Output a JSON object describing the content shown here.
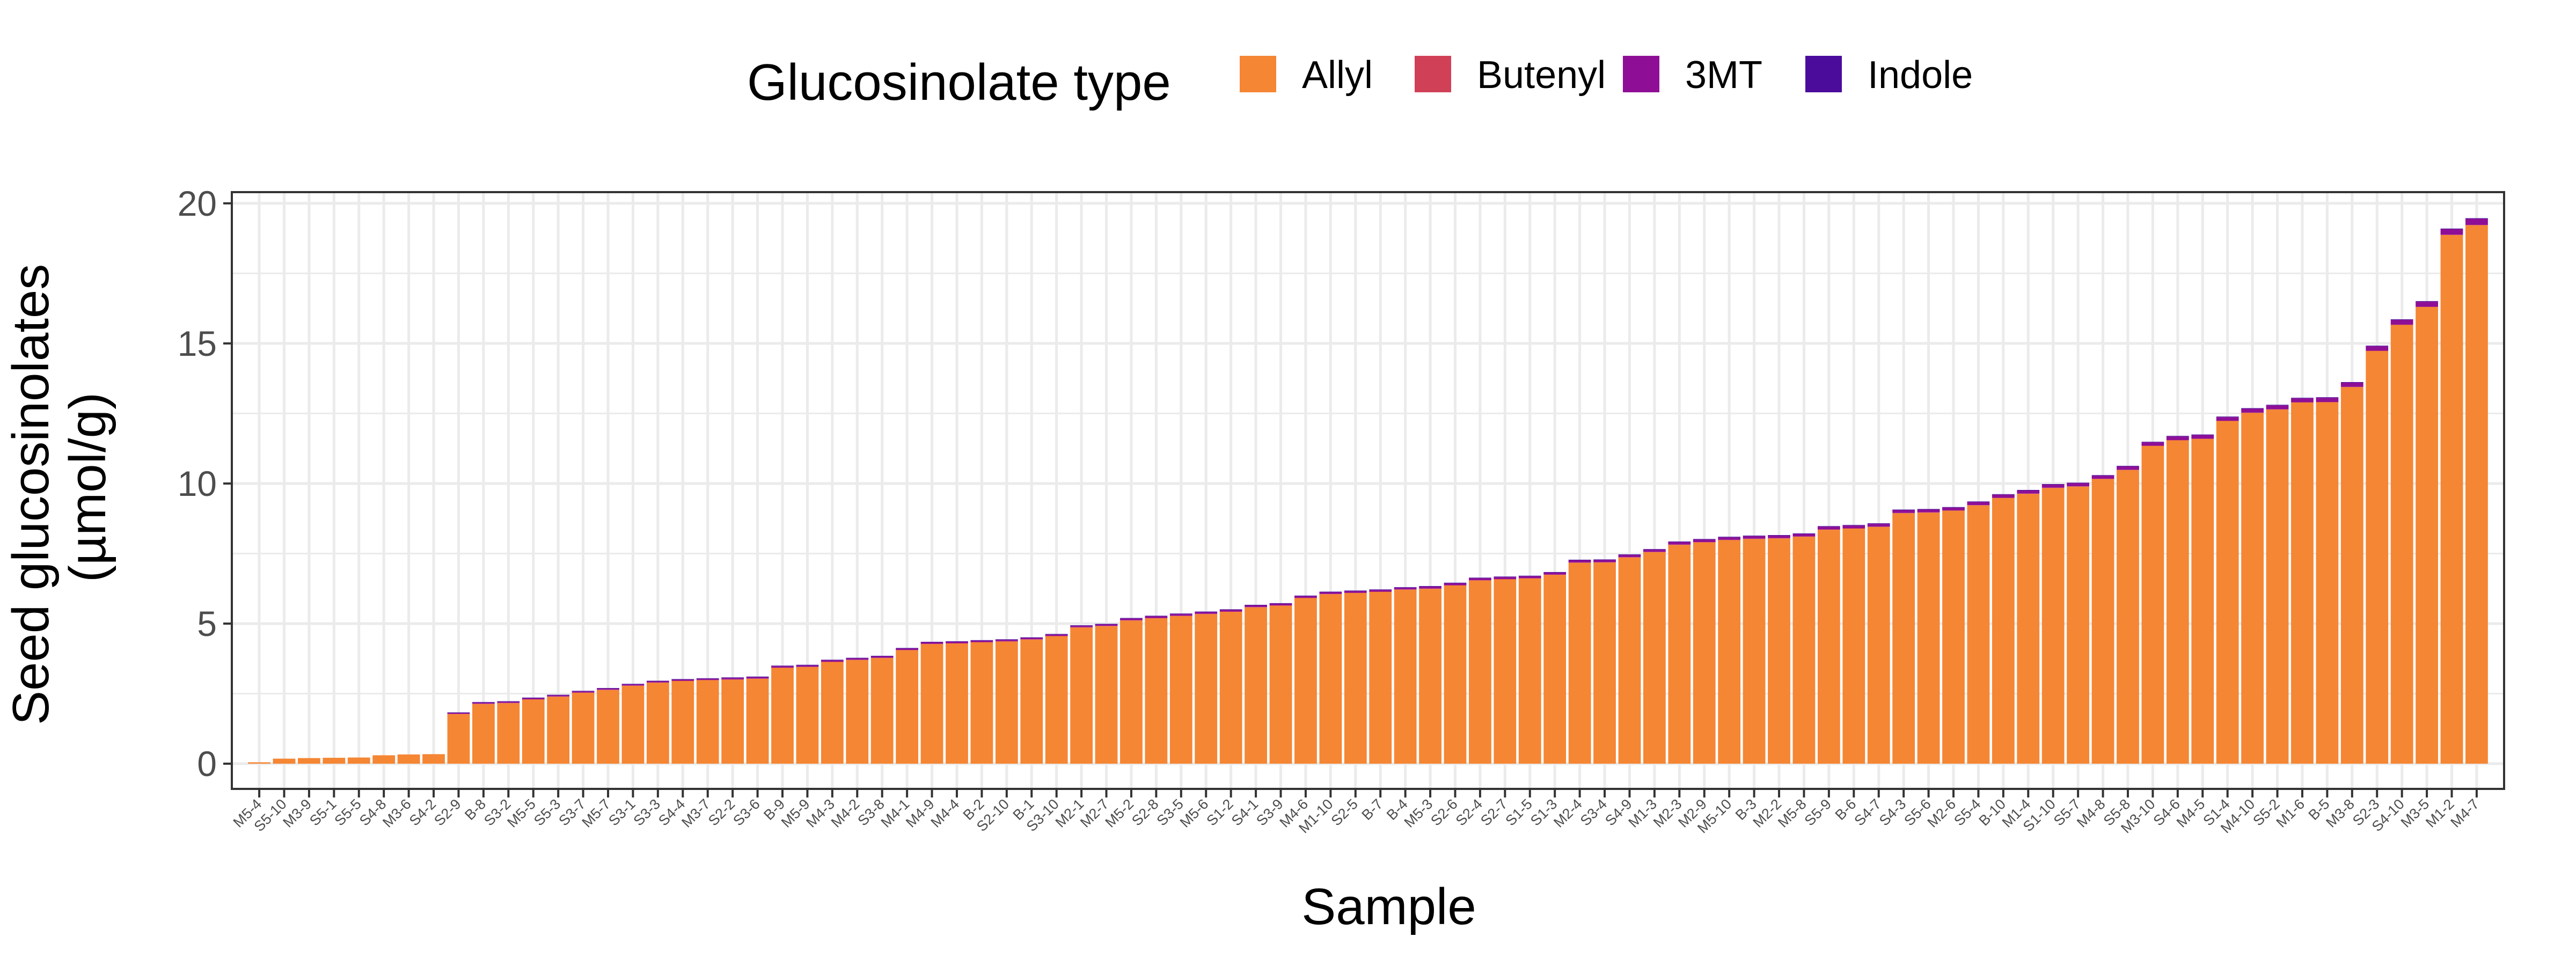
{
  "chart_data": {
    "type": "bar",
    "stacked": true,
    "title": "",
    "xlabel": "Sample",
    "ylabel_lines": [
      "Seed glucosinolates",
      "(µmol/g)"
    ],
    "ylim": [
      -0.9,
      20.4
    ],
    "yticks": [
      0,
      5,
      10,
      15,
      20
    ],
    "grid": true,
    "legend": {
      "title": "Glucosinolate type",
      "position": "top"
    },
    "categories": [
      "M5-4",
      "S5-10",
      "M3-9",
      "S5-1",
      "S5-5",
      "S4-8",
      "M3-6",
      "S4-2",
      "S2-9",
      "B-8",
      "S3-2",
      "M5-5",
      "S5-3",
      "S3-7",
      "M5-7",
      "S3-1",
      "S3-3",
      "S4-4",
      "M3-7",
      "S2-2",
      "S3-6",
      "B-9",
      "M5-9",
      "M4-3",
      "M4-2",
      "S3-8",
      "M4-1",
      "M4-9",
      "M4-4",
      "B-2",
      "S2-10",
      "B-1",
      "S3-10",
      "M2-1",
      "M2-7",
      "M5-2",
      "S2-8",
      "S3-5",
      "M5-6",
      "S1-2",
      "S4-1",
      "S3-9",
      "M4-6",
      "M1-10",
      "S2-5",
      "B-7",
      "B-4",
      "M5-3",
      "S2-6",
      "S2-4",
      "S2-7",
      "S1-5",
      "S1-3",
      "M2-4",
      "S3-4",
      "S4-9",
      "M1-3",
      "M2-3",
      "M2-9",
      "M5-10",
      "B-3",
      "M2-2",
      "M5-8",
      "S5-9",
      "B-6",
      "S4-7",
      "S4-3",
      "S5-6",
      "M2-6",
      "S5-4",
      "B-10",
      "M1-4",
      "S1-10",
      "S5-7",
      "M4-8",
      "S5-8",
      "M3-10",
      "S4-6",
      "M4-5",
      "S1-4",
      "M4-10",
      "S5-2",
      "M1-6",
      "B-5",
      "M3-8",
      "S2-3",
      "S4-10",
      "M3-5",
      "M1-2",
      "M4-7"
    ],
    "series": [
      {
        "name": "Indole",
        "color": "#4B0C9C",
        "values": [
          0,
          0,
          0,
          0,
          0,
          0,
          0,
          0,
          0.02,
          0.02,
          0.02,
          0.02,
          0.02,
          0.02,
          0.02,
          0.02,
          0.02,
          0.02,
          0.02,
          0.02,
          0.02,
          0.02,
          0.02,
          0.02,
          0.02,
          0.02,
          0.02,
          0.02,
          0.02,
          0.02,
          0.02,
          0.02,
          0.02,
          0.02,
          0.02,
          0.02,
          0.02,
          0.02,
          0.02,
          0.02,
          0.02,
          0.02,
          0.02,
          0.02,
          0.02,
          0.02,
          0.02,
          0.02,
          0.02,
          0.02,
          0.02,
          0.02,
          0.02,
          0.02,
          0.02,
          0.02,
          0.02,
          0.02,
          0.02,
          0.02,
          0.02,
          0.02,
          0.02,
          0.02,
          0.02,
          0.02,
          0.02,
          0.02,
          0.02,
          0.02,
          0.02,
          0.02,
          0.02,
          0.02,
          0.02,
          0.02,
          0.02,
          0.02,
          0.02,
          0.02,
          0.02,
          0.02,
          0.02,
          0.02,
          0.02,
          0.02,
          0.02,
          0.02,
          0.02,
          0.02
        ]
      },
      {
        "name": "3MT",
        "color": "#8E0F96",
        "values": [
          0,
          0,
          0,
          0,
          0,
          0,
          0,
          0,
          0.03,
          0.04,
          0.04,
          0.04,
          0.04,
          0.04,
          0.04,
          0.04,
          0.04,
          0.04,
          0.04,
          0.05,
          0.05,
          0.05,
          0.05,
          0.05,
          0.05,
          0.05,
          0.05,
          0.05,
          0.05,
          0.05,
          0.05,
          0.05,
          0.05,
          0.05,
          0.05,
          0.06,
          0.06,
          0.06,
          0.06,
          0.06,
          0.06,
          0.06,
          0.06,
          0.06,
          0.06,
          0.06,
          0.06,
          0.07,
          0.07,
          0.07,
          0.07,
          0.07,
          0.07,
          0.08,
          0.08,
          0.08,
          0.08,
          0.09,
          0.09,
          0.09,
          0.09,
          0.09,
          0.09,
          0.1,
          0.1,
          0.1,
          0.1,
          0.1,
          0.1,
          0.11,
          0.11,
          0.11,
          0.11,
          0.11,
          0.11,
          0.12,
          0.12,
          0.13,
          0.13,
          0.13,
          0.14,
          0.14,
          0.14,
          0.15,
          0.15,
          0.16,
          0.17,
          0.18,
          0.2,
          0.22
        ]
      },
      {
        "name": "Butenyl",
        "color": "#D04057",
        "values": [
          0,
          0,
          0,
          0,
          0,
          0,
          0,
          0,
          0.01,
          0.01,
          0.01,
          0.01,
          0.01,
          0.01,
          0.01,
          0.01,
          0.01,
          0.01,
          0.01,
          0.01,
          0.01,
          0.01,
          0.01,
          0.01,
          0.01,
          0.01,
          0.01,
          0.01,
          0.01,
          0.01,
          0.01,
          0.01,
          0.01,
          0.01,
          0.01,
          0.01,
          0.01,
          0.01,
          0.01,
          0.01,
          0.01,
          0.01,
          0.01,
          0.01,
          0.01,
          0.01,
          0.01,
          0.01,
          0.01,
          0.01,
          0.01,
          0.01,
          0.01,
          0.01,
          0.01,
          0.01,
          0.01,
          0.01,
          0.01,
          0.01,
          0.01,
          0.01,
          0.01,
          0.01,
          0.01,
          0.01,
          0.01,
          0.01,
          0.01,
          0.01,
          0.01,
          0.01,
          0.01,
          0.01,
          0.01,
          0.01,
          0.01,
          0.01,
          0.01,
          0.01,
          0.01,
          0.01,
          0.01,
          0.01,
          0.01,
          0.01,
          0.01,
          0.01,
          0.01,
          0.01
        ]
      },
      {
        "name": "Allyl",
        "color": "#F58634",
        "values": [
          0.05,
          0.18,
          0.2,
          0.21,
          0.22,
          0.3,
          0.33,
          0.34,
          1.77,
          2.13,
          2.16,
          2.29,
          2.39,
          2.53,
          2.63,
          2.78,
          2.89,
          2.95,
          2.98,
          3.0,
          3.03,
          3.42,
          3.45,
          3.63,
          3.7,
          3.77,
          4.05,
          4.27,
          4.29,
          4.33,
          4.36,
          4.43,
          4.55,
          4.86,
          4.91,
          5.11,
          5.19,
          5.27,
          5.34,
          5.42,
          5.58,
          5.64,
          5.91,
          6.05,
          6.09,
          6.13,
          6.21,
          6.24,
          6.36,
          6.54,
          6.58,
          6.61,
          6.74,
          7.17,
          7.18,
          7.36,
          7.55,
          7.81,
          7.9,
          7.98,
          8.02,
          8.04,
          8.1,
          8.35,
          8.39,
          8.45,
          8.94,
          8.96,
          9.03,
          9.22,
          9.48,
          9.63,
          9.84,
          9.89,
          10.16,
          10.48,
          11.34,
          11.54,
          11.59,
          12.23,
          12.52,
          12.64,
          12.89,
          12.9,
          13.44,
          14.73,
          15.66,
          16.3,
          18.87,
          19.22
        ]
      }
    ]
  }
}
